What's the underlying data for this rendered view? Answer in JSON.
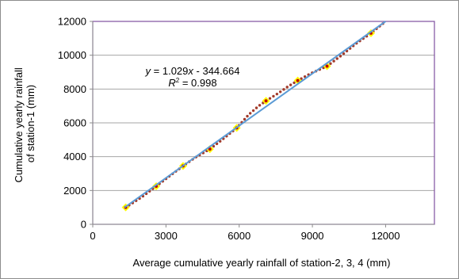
{
  "chart_data": {
    "type": "scatter",
    "xlabel": "Average cumulative yearly rainfall of station-2, 3, 4 (mm)",
    "ylabel_line1": "Cumulative yearly rainfall",
    "ylabel_line2": "of station-1 (mm)",
    "xlim": [
      0,
      14000
    ],
    "ylim": [
      0,
      12000
    ],
    "x_ticks": [
      0,
      3000,
      6000,
      9000,
      12000
    ],
    "y_ticks": [
      0,
      2000,
      4000,
      6000,
      8000,
      10000,
      12000
    ],
    "x_tick_labels": [
      "0",
      "3000",
      "6000",
      "9000",
      "12000"
    ],
    "y_tick_labels": [
      "0",
      "2000",
      "4000",
      "6000",
      "8000",
      "10000",
      "12000"
    ],
    "grid": "horizontal",
    "points": [
      {
        "x": 1350,
        "y": 1000
      },
      {
        "x": 2600,
        "y": 2250
      },
      {
        "x": 3700,
        "y": 3450
      },
      {
        "x": 4800,
        "y": 4450
      },
      {
        "x": 5900,
        "y": 5700
      },
      {
        "x": 7100,
        "y": 7300
      },
      {
        "x": 8400,
        "y": 8500
      },
      {
        "x": 9600,
        "y": 9350
      },
      {
        "x": 11400,
        "y": 11300
      }
    ],
    "trendline": {
      "slope": 1.029,
      "intercept": -344.664,
      "x_range": [
        1300,
        12000
      ]
    },
    "smooth_curve": [
      [
        1350,
        1000
      ],
      [
        2000,
        1600
      ],
      [
        2600,
        2250
      ],
      [
        3100,
        2800
      ],
      [
        3700,
        3450
      ],
      [
        4200,
        3950
      ],
      [
        4800,
        4450
      ],
      [
        5300,
        5000
      ],
      [
        5900,
        5700
      ],
      [
        6400,
        6500
      ],
      [
        6800,
        7000
      ],
      [
        7100,
        7300
      ],
      [
        7600,
        7750
      ],
      [
        8000,
        8150
      ],
      [
        8400,
        8500
      ],
      [
        8900,
        8900
      ],
      [
        9600,
        9350
      ],
      [
        10200,
        10000
      ],
      [
        10800,
        10700
      ],
      [
        11400,
        11300
      ],
      [
        12000,
        12000
      ]
    ],
    "annotation": {
      "equation_y": "y",
      "equation_rest": " = 1.029",
      "equation_x": "x",
      "equation_tail": " - 344.664",
      "r2_R": "R",
      "r2_exp": "2",
      "r2_tail": " = 0.998"
    },
    "colors": {
      "plot_border": "#7f4f9f",
      "grid": "#a6a6a6",
      "marker_fill": "#ffff00",
      "marker_edge": "#c00000",
      "dots": "#a33a2a",
      "trendline": "#5b9bd5"
    }
  }
}
